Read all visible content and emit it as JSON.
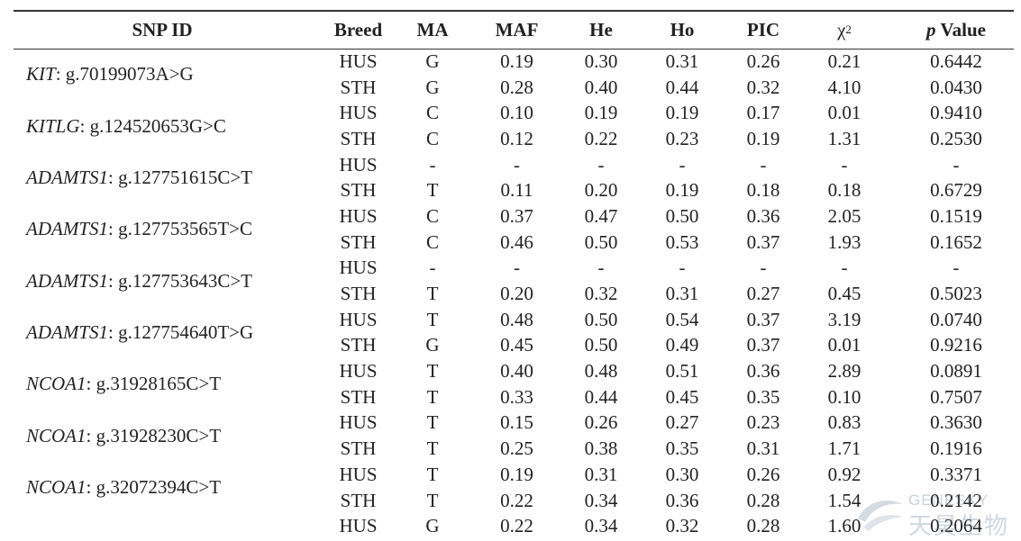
{
  "headers": {
    "snp_id": "SNP ID",
    "breed": "Breed",
    "ma": "MA",
    "maf": "MAF",
    "he": "He",
    "ho": "Ho",
    "pic": "PIC",
    "chi": "χ",
    "chi_sup": "2",
    "p": "p",
    "value": "Value"
  },
  "snps": [
    {
      "gene": "KIT",
      "variant": ": g.70199073A>G",
      "rows": [
        {
          "breed": "HUS",
          "ma": "G",
          "maf": "0.19",
          "he": "0.30",
          "ho": "0.31",
          "pic": "0.26",
          "chi2": "0.21",
          "p": "0.6442"
        },
        {
          "breed": "STH",
          "ma": "G",
          "maf": "0.28",
          "he": "0.40",
          "ho": "0.44",
          "pic": "0.32",
          "chi2": "4.10",
          "p": "0.0430"
        }
      ]
    },
    {
      "gene": "KITLG",
      "variant": ": g.124520653G>C",
      "rows": [
        {
          "breed": "HUS",
          "ma": "C",
          "maf": "0.10",
          "he": "0.19",
          "ho": "0.19",
          "pic": "0.17",
          "chi2": "0.01",
          "p": "0.9410"
        },
        {
          "breed": "STH",
          "ma": "C",
          "maf": "0.12",
          "he": "0.22",
          "ho": "0.23",
          "pic": "0.19",
          "chi2": "1.31",
          "p": "0.2530"
        }
      ]
    },
    {
      "gene": "ADAMTS1",
      "variant": ": g.127751615C>T",
      "rows": [
        {
          "breed": "HUS",
          "ma": "-",
          "maf": "-",
          "he": "-",
          "ho": "-",
          "pic": "-",
          "chi2": "-",
          "p": "-"
        },
        {
          "breed": "STH",
          "ma": "T",
          "maf": "0.11",
          "he": "0.20",
          "ho": "0.19",
          "pic": "0.18",
          "chi2": "0.18",
          "p": "0.6729"
        }
      ]
    },
    {
      "gene": "ADAMTS1",
      "variant": ": g.127753565T>C",
      "rows": [
        {
          "breed": "HUS",
          "ma": "C",
          "maf": "0.37",
          "he": "0.47",
          "ho": "0.50",
          "pic": "0.36",
          "chi2": "2.05",
          "p": "0.1519"
        },
        {
          "breed": "STH",
          "ma": "C",
          "maf": "0.46",
          "he": "0.50",
          "ho": "0.53",
          "pic": "0.37",
          "chi2": "1.93",
          "p": "0.1652"
        }
      ]
    },
    {
      "gene": "ADAMTS1",
      "variant": ": g.127753643C>T",
      "rows": [
        {
          "breed": "HUS",
          "ma": "-",
          "maf": "-",
          "he": "-",
          "ho": "-",
          "pic": "-",
          "chi2": "-",
          "p": "-"
        },
        {
          "breed": "STH",
          "ma": "T",
          "maf": "0.20",
          "he": "0.32",
          "ho": "0.31",
          "pic": "0.27",
          "chi2": "0.45",
          "p": "0.5023"
        }
      ]
    },
    {
      "gene": "ADAMTS1",
      "variant": ": g.127754640T>G",
      "rows": [
        {
          "breed": "HUS",
          "ma": "T",
          "maf": "0.48",
          "he": "0.50",
          "ho": "0.54",
          "pic": "0.37",
          "chi2": "3.19",
          "p": "0.0740"
        },
        {
          "breed": "STH",
          "ma": "G",
          "maf": "0.45",
          "he": "0.50",
          "ho": "0.49",
          "pic": "0.37",
          "chi2": "0.01",
          "p": "0.9216"
        }
      ]
    },
    {
      "gene": "NCOA1",
      "variant": ": g.31928165C>T",
      "rows": [
        {
          "breed": "HUS",
          "ma": "T",
          "maf": "0.40",
          "he": "0.48",
          "ho": "0.51",
          "pic": "0.36",
          "chi2": "2.89",
          "p": "0.0891"
        },
        {
          "breed": "STH",
          "ma": "T",
          "maf": "0.33",
          "he": "0.44",
          "ho": "0.45",
          "pic": "0.35",
          "chi2": "0.10",
          "p": "0.7507"
        }
      ]
    },
    {
      "gene": "NCOA1",
      "variant": ": g.31928230C>T",
      "rows": [
        {
          "breed": "HUS",
          "ma": "T",
          "maf": "0.15",
          "he": "0.26",
          "ho": "0.27",
          "pic": "0.23",
          "chi2": "0.83",
          "p": "0.3630"
        },
        {
          "breed": "STH",
          "ma": "T",
          "maf": "0.25",
          "he": "0.38",
          "ho": "0.35",
          "pic": "0.31",
          "chi2": "1.71",
          "p": "0.1916"
        }
      ]
    },
    {
      "gene": "NCOA1",
      "variant": ": g.32072394C>T",
      "rows": [
        {
          "breed": "HUS",
          "ma": "T",
          "maf": "0.19",
          "he": "0.31",
          "ho": "0.30",
          "pic": "0.26",
          "chi2": "0.92",
          "p": "0.3371"
        },
        {
          "breed": "STH",
          "ma": "T",
          "maf": "0.22",
          "he": "0.34",
          "ho": "0.36",
          "pic": "0.28",
          "chi2": "1.54",
          "p": "0.2142"
        }
      ]
    }
  ],
  "extra_row": {
    "breed": "HUS",
    "ma": "G",
    "maf": "0.22",
    "he": "0.34",
    "ho": "0.32",
    "pic": "0.28",
    "chi2": "1.60",
    "p": "0.2064"
  },
  "watermark": {
    "en": "GENESKY",
    "cn": "天昊生物"
  }
}
